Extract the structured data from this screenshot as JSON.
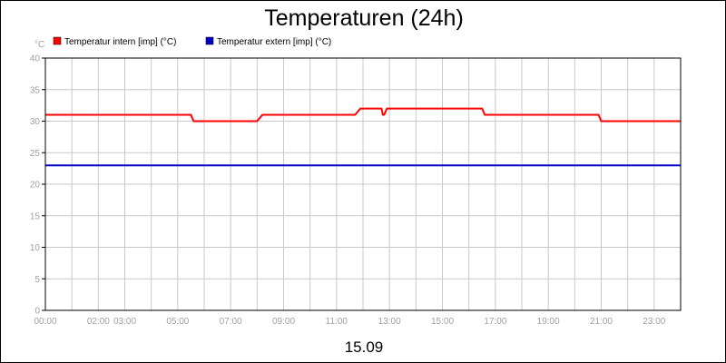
{
  "chart_data": {
    "type": "line",
    "title": "Temperaturen (24h)",
    "ylabel": "°C",
    "xlabel": "15.09",
    "ylim": [
      0,
      40
    ],
    "yticks": [
      0,
      5,
      10,
      15,
      20,
      25,
      30,
      35,
      40
    ],
    "xlim": [
      0,
      24
    ],
    "xticks": [
      {
        "value": 0,
        "label": "00:00"
      },
      {
        "value": 2,
        "label": "02:00"
      },
      {
        "value": 3,
        "label": "03:00"
      },
      {
        "value": 5,
        "label": "05:00"
      },
      {
        "value": 7,
        "label": "07:00"
      },
      {
        "value": 9,
        "label": "09:00"
      },
      {
        "value": 11,
        "label": "11:00"
      },
      {
        "value": 13,
        "label": "13:00"
      },
      {
        "value": 15,
        "label": "15:00"
      },
      {
        "value": 17,
        "label": "17:00"
      },
      {
        "value": 19,
        "label": "19:00"
      },
      {
        "value": 21,
        "label": "21:00"
      },
      {
        "value": 23,
        "label": "23:00"
      }
    ],
    "grid": true,
    "legend_position": "top-left",
    "series": [
      {
        "name": "Temperatur intern [imp] (°C)",
        "color": "#ff0000",
        "x": [
          0,
          5.5,
          5.6,
          8.0,
          8.2,
          11.7,
          11.9,
          12.7,
          12.75,
          12.8,
          12.9,
          16.5,
          16.6,
          20.9,
          21.0,
          24
        ],
        "y": [
          31,
          31,
          30,
          30,
          31,
          31,
          32,
          32,
          31,
          31,
          32,
          32,
          31,
          31,
          30,
          30
        ]
      },
      {
        "name": "Temperatur extern [imp] (°C)",
        "color": "#0000cc",
        "x": [
          0,
          24
        ],
        "y": [
          23,
          23
        ]
      }
    ]
  }
}
